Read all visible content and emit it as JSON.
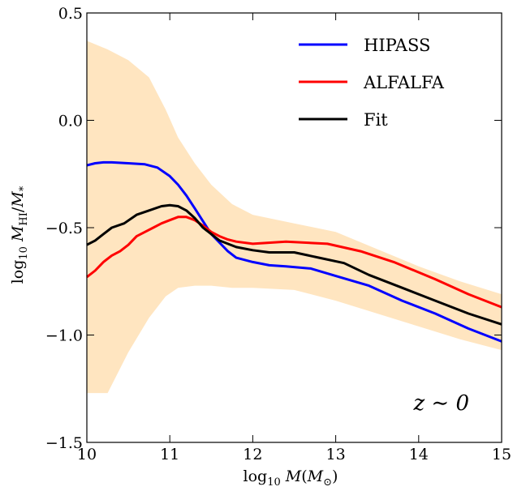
{
  "chart_data": {
    "type": "line",
    "title": "",
    "xlabel": "log10 M(M⊙)",
    "ylabel": "log10 MHI/M*",
    "xlim": [
      10,
      15
    ],
    "ylim": [
      -1.5,
      0.5
    ],
    "x_ticks": [
      10,
      11,
      12,
      13,
      14,
      15
    ],
    "y_ticks": [
      -1.5,
      -1.0,
      -0.5,
      0.0,
      0.5
    ],
    "x_tick_labels": [
      "10",
      "11",
      "12",
      "13",
      "14",
      "15"
    ],
    "y_tick_labels": [
      "−1.5",
      "−1.0",
      "−0.5",
      "0.0",
      "0.5"
    ],
    "grid": false,
    "legend_position": "top-right",
    "annotation": "z ∼ 0",
    "band": {
      "color": "#ffe5c0",
      "x": [
        10.0,
        10.25,
        10.5,
        10.75,
        10.95,
        11.1,
        11.3,
        11.5,
        11.75,
        12.0,
        12.5,
        13.0,
        13.5,
        14.0,
        14.5,
        15.0
      ],
      "upper": [
        0.37,
        0.33,
        0.28,
        0.2,
        0.05,
        -0.08,
        -0.2,
        -0.3,
        -0.39,
        -0.44,
        -0.48,
        -0.52,
        -0.6,
        -0.68,
        -0.75,
        -0.81
      ],
      "lower": [
        -1.27,
        -1.27,
        -1.08,
        -0.92,
        -0.82,
        -0.78,
        -0.77,
        -0.77,
        -0.78,
        -0.78,
        -0.79,
        -0.84,
        -0.9,
        -0.96,
        -1.02,
        -1.07
      ]
    },
    "series": [
      {
        "name": "HIPASS",
        "color": "#0000ff",
        "x": [
          10.0,
          10.1,
          10.2,
          10.3,
          10.5,
          10.7,
          10.85,
          11.0,
          11.1,
          11.2,
          11.3,
          11.4,
          11.5,
          11.6,
          11.7,
          11.8,
          12.0,
          12.2,
          12.4,
          12.7,
          13.0,
          13.4,
          13.8,
          14.2,
          14.6,
          15.0
        ],
        "values": [
          -0.21,
          -0.2,
          -0.196,
          -0.196,
          -0.2,
          -0.205,
          -0.22,
          -0.26,
          -0.3,
          -0.35,
          -0.41,
          -0.47,
          -0.53,
          -0.57,
          -0.61,
          -0.64,
          -0.66,
          -0.675,
          -0.68,
          -0.69,
          -0.725,
          -0.77,
          -0.84,
          -0.9,
          -0.97,
          -1.03
        ]
      },
      {
        "name": "ALFALFA",
        "color": "#ff0000",
        "x": [
          10.0,
          10.1,
          10.2,
          10.3,
          10.4,
          10.5,
          10.6,
          10.7,
          10.8,
          10.9,
          11.0,
          11.1,
          11.2,
          11.3,
          11.4,
          11.5,
          11.6,
          11.7,
          11.8,
          12.0,
          12.4,
          12.9,
          13.3,
          13.7,
          14.2,
          14.6,
          15.0
        ],
        "values": [
          -0.73,
          -0.7,
          -0.66,
          -0.63,
          -0.61,
          -0.58,
          -0.54,
          -0.52,
          -0.5,
          -0.48,
          -0.465,
          -0.45,
          -0.45,
          -0.465,
          -0.49,
          -0.52,
          -0.54,
          -0.555,
          -0.565,
          -0.575,
          -0.565,
          -0.575,
          -0.61,
          -0.66,
          -0.74,
          -0.81,
          -0.87
        ]
      },
      {
        "name": "Fit",
        "color": "#000000",
        "x": [
          10.0,
          10.1,
          10.2,
          10.3,
          10.45,
          10.6,
          10.75,
          10.9,
          11.0,
          11.1,
          11.2,
          11.3,
          11.4,
          11.5,
          11.6,
          11.7,
          11.8,
          12.0,
          12.2,
          12.5,
          12.8,
          13.1,
          13.4,
          13.8,
          14.2,
          14.6,
          15.0
        ],
        "values": [
          -0.58,
          -0.56,
          -0.53,
          -0.5,
          -0.48,
          -0.44,
          -0.42,
          -0.4,
          -0.395,
          -0.4,
          -0.42,
          -0.455,
          -0.5,
          -0.53,
          -0.56,
          -0.575,
          -0.59,
          -0.605,
          -0.615,
          -0.615,
          -0.64,
          -0.665,
          -0.72,
          -0.78,
          -0.84,
          -0.9,
          -0.95
        ]
      }
    ]
  }
}
